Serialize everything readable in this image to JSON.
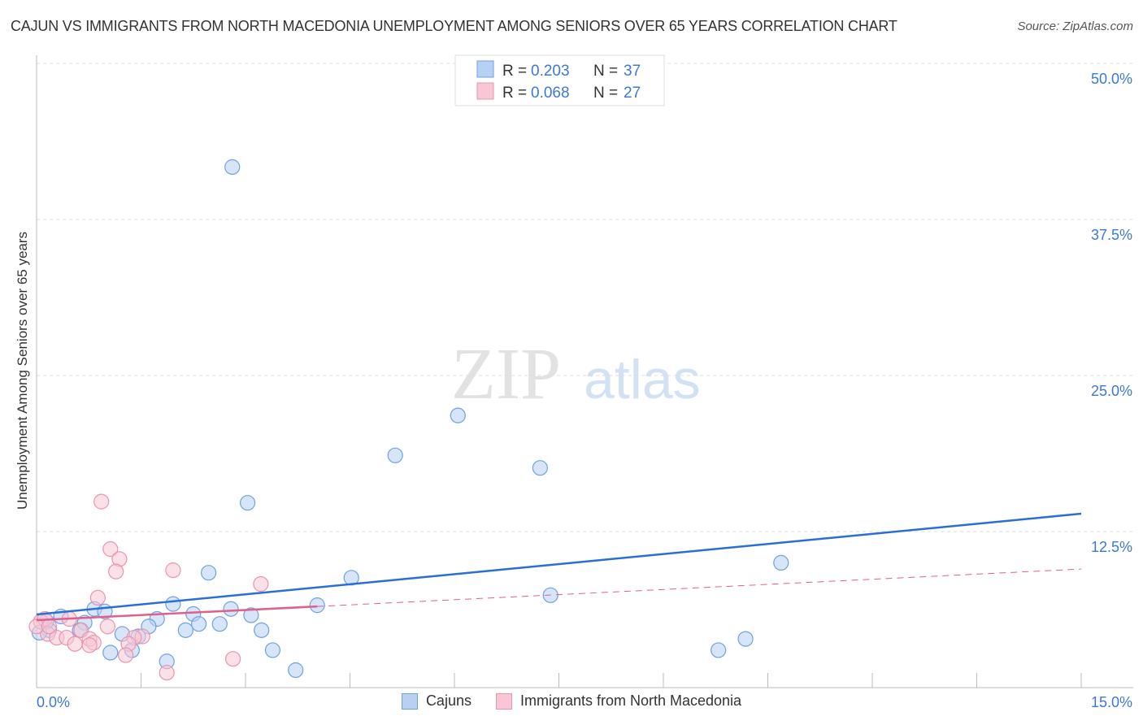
{
  "title": "CAJUN VS IMMIGRANTS FROM NORTH MACEDONIA UNEMPLOYMENT AMONG SENIORS OVER 65 YEARS CORRELATION CHART",
  "source": "Source: ZipAtlas.com",
  "watermark": "ZIPatlas",
  "chart_data": {
    "type": "scatter",
    "title": "CAJUN VS IMMIGRANTS FROM NORTH MACEDONIA UNEMPLOYMENT AMONG SENIORS OVER 65 YEARS CORRELATION CHART",
    "xlabel": "",
    "ylabel": "Unemployment Among Seniors over 65 years",
    "xlim": [
      0,
      15
    ],
    "ylim": [
      0,
      50
    ],
    "x_tick_labels": [
      "0.0%",
      "15.0%"
    ],
    "y_ticks": [
      12.5,
      25,
      37.5,
      50
    ],
    "y_tick_labels": [
      "12.5%",
      "25.0%",
      "37.5%",
      "50.0%"
    ],
    "grid": true,
    "legend_placement": "top-center",
    "series": [
      {
        "name": "Cajuns",
        "color": "#6fa1e0",
        "fill": "#b7d0f3",
        "R": "0.203",
        "N": "37",
        "trend": [
          [
            0,
            5.86
          ],
          [
            15,
            13.93
          ]
        ],
        "points": [
          [
            2.81,
            41.7
          ],
          [
            6.05,
            21.8
          ],
          [
            5.15,
            18.6
          ],
          [
            7.23,
            17.6
          ],
          [
            3.03,
            14.8
          ],
          [
            10.69,
            10.0
          ],
          [
            2.47,
            9.2
          ],
          [
            4.52,
            8.8
          ],
          [
            7.38,
            7.4
          ],
          [
            1.96,
            6.7
          ],
          [
            4.03,
            6.6
          ],
          [
            0.83,
            6.3
          ],
          [
            0.98,
            6.1
          ],
          [
            2.79,
            6.3
          ],
          [
            2.25,
            5.9
          ],
          [
            3.08,
            5.8
          ],
          [
            1.73,
            5.5
          ],
          [
            0.35,
            5.7
          ],
          [
            0.69,
            5.2
          ],
          [
            2.63,
            5.1
          ],
          [
            2.33,
            5.1
          ],
          [
            1.61,
            4.9
          ],
          [
            2.14,
            4.6
          ],
          [
            3.23,
            4.6
          ],
          [
            0.18,
            4.6
          ],
          [
            0.62,
            4.6
          ],
          [
            1.23,
            4.3
          ],
          [
            1.46,
            4.1
          ],
          [
            10.18,
            3.9
          ],
          [
            1.06,
            2.8
          ],
          [
            1.37,
            3.0
          ],
          [
            3.39,
            3.0
          ],
          [
            9.79,
            3.0
          ],
          [
            1.87,
            2.1
          ],
          [
            3.72,
            1.4
          ],
          [
            0.04,
            4.4
          ],
          [
            0.14,
            5.3
          ]
        ]
      },
      {
        "name": "Immigrants from North Macedonia",
        "color": "#e994ad",
        "fill": "#f8c6d5",
        "R": "0.068",
        "N": "27",
        "trend": [
          [
            0,
            5.4
          ],
          [
            4.03,
            6.5
          ],
          [
            15,
            9.5
          ]
        ],
        "points": [
          [
            0.93,
            14.9
          ],
          [
            1.06,
            11.1
          ],
          [
            1.19,
            10.3
          ],
          [
            1.14,
            9.3
          ],
          [
            1.96,
            9.4
          ],
          [
            3.22,
            8.3
          ],
          [
            0.88,
            7.2
          ],
          [
            1.02,
            4.9
          ],
          [
            0.06,
            5.3
          ],
          [
            0.12,
            5.5
          ],
          [
            0.47,
            5.5
          ],
          [
            0.64,
            4.6
          ],
          [
            0.16,
            4.3
          ],
          [
            0.29,
            4.0
          ],
          [
            0.43,
            4.0
          ],
          [
            0.76,
            3.9
          ],
          [
            0.55,
            3.5
          ],
          [
            0.82,
            3.6
          ],
          [
            0.76,
            3.4
          ],
          [
            1.52,
            4.1
          ],
          [
            1.4,
            4.0
          ],
          [
            1.32,
            3.5
          ],
          [
            1.28,
            2.6
          ],
          [
            2.82,
            2.3
          ],
          [
            1.87,
            1.2
          ],
          [
            0,
            4.9
          ],
          [
            0.18,
            4.9
          ]
        ]
      }
    ]
  },
  "legend": {
    "r_label": "R = ",
    "n_label": "N = "
  }
}
